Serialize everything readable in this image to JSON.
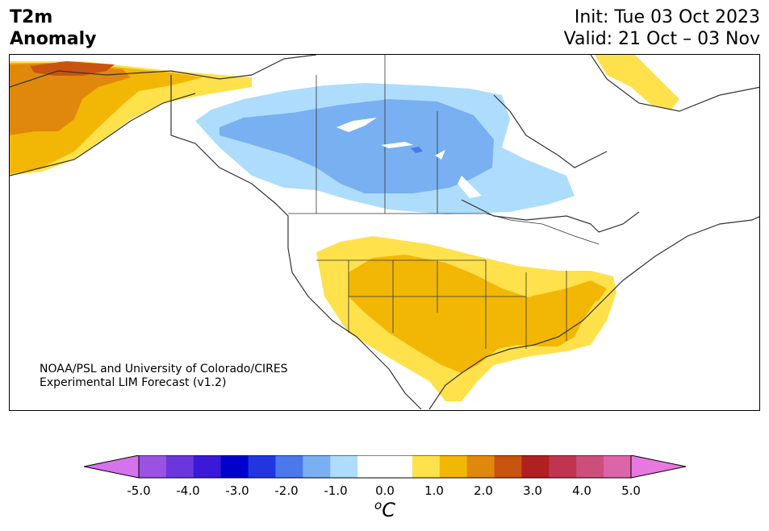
{
  "header": {
    "title_line1": "T2m",
    "title_line2": "Anomaly",
    "init": "Init: Tue 03 Oct 2023",
    "valid": "Valid: 21 Oct – 03 Nov"
  },
  "credit": {
    "line1": "NOAA/PSL and University of Colorado/CIRES",
    "line2": "Experimental LIM Forecast (v1.2)"
  },
  "colorbar": {
    "colors": [
      "#d672ec",
      "#9a52e0",
      "#6a37dc",
      "#3a1ad6",
      "#0000cc",
      "#2236e0",
      "#4b78ea",
      "#78b0f2",
      "#aedcfc",
      "#ffffff",
      "#ffffff",
      "#ffe14c",
      "#f2b705",
      "#e0880c",
      "#c8540f",
      "#b02020",
      "#c03450",
      "#cc4f7b",
      "#dc64a9",
      "#e878e0"
    ],
    "tick_labels": [
      "-5.0",
      "-4.0",
      "-3.0",
      "-2.0",
      "-1.0",
      "0.0",
      "1.0",
      "2.0",
      "3.0",
      "4.0",
      "5.0"
    ],
    "unit_base": "C",
    "unit_sup": "o"
  }
}
